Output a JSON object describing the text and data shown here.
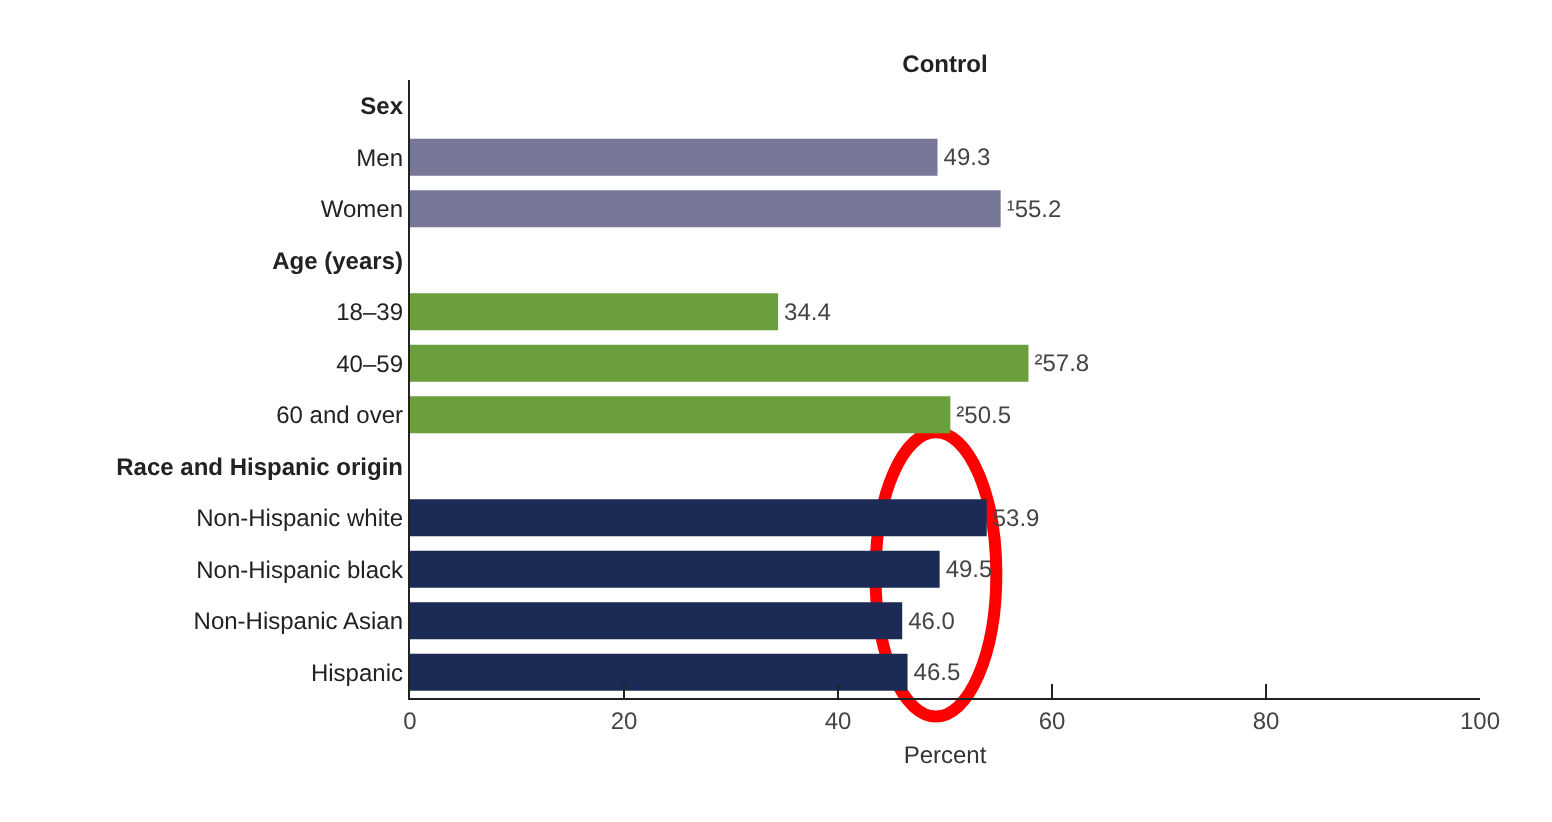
{
  "chart_data": {
    "type": "bar",
    "orientation": "horizontal",
    "title": "Control",
    "xlabel": "Percent",
    "categories": [
      "Sex",
      "Men",
      "Women",
      "Age (years)",
      "18–39",
      "40–59",
      "60 and over",
      "Race and Hispanic origin",
      "Non-Hispanic white",
      "Non-Hispanic black",
      "Non-Hispanic Asian",
      "Hispanic"
    ],
    "values": [
      null,
      49.3,
      55.2,
      null,
      34.4,
      57.8,
      50.5,
      null,
      53.9,
      49.5,
      46.0,
      46.5
    ],
    "value_labels": [
      null,
      "49.3",
      "¹55.2",
      null,
      "34.4",
      "²57.8",
      "²50.5",
      null,
      "53.9",
      "49.5",
      "46.0",
      "46.5"
    ],
    "colors": [
      null,
      "#777797",
      "#777797",
      null,
      "#6b9e3c",
      "#6b9e3c",
      "#6b9e3c",
      null,
      "#1c2b55",
      "#1c2b55",
      "#1c2b55",
      "#1c2b55"
    ],
    "xlim": [
      0,
      100
    ],
    "xticks": [
      0,
      20,
      40,
      60,
      80,
      100
    ],
    "legend": false
  }
}
